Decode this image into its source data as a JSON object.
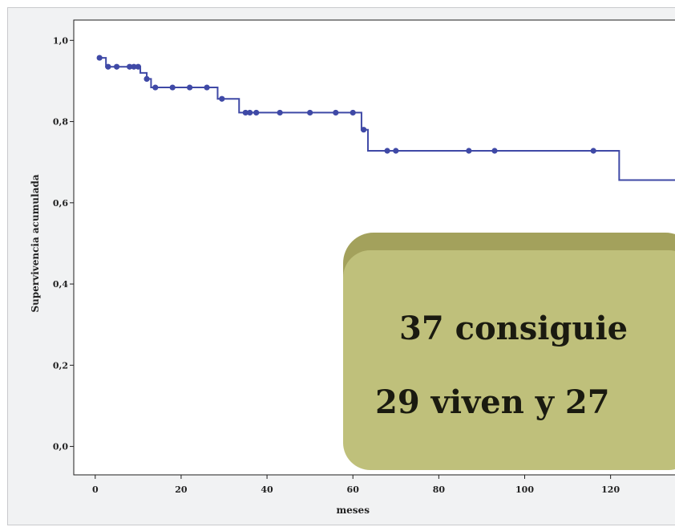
{
  "chart_data": {
    "type": "line",
    "step": true,
    "xlabel": "meses",
    "ylabel": "Supervivencia acumulada",
    "xlim": [
      -5,
      135
    ],
    "ylim": [
      -0.07,
      1.05
    ],
    "x_ticks": [
      "0",
      "20",
      "40",
      "60",
      "80",
      "100",
      "120"
    ],
    "y_ticks": [
      "0,0",
      "0,2",
      "0,4",
      "0,6",
      "0,8",
      "1,0"
    ],
    "grid": false,
    "series": [
      {
        "color": "#3f49a6",
        "steps": [
          [
            0.5,
            0.957
          ],
          [
            2.5,
            0.935
          ],
          [
            10.5,
            0.92
          ],
          [
            12,
            0.905
          ],
          [
            13,
            0.884
          ],
          [
            28.5,
            0.856
          ],
          [
            33.5,
            0.822
          ],
          [
            62,
            0.78
          ],
          [
            63.5,
            0.728
          ],
          [
            122,
            0.656
          ],
          [
            135,
            0.656
          ]
        ],
        "censored": [
          [
            1,
            0.957
          ],
          [
            3,
            0.935
          ],
          [
            5,
            0.935
          ],
          [
            8,
            0.935
          ],
          [
            9,
            0.935
          ],
          [
            10,
            0.935
          ],
          [
            12,
            0.905
          ],
          [
            14,
            0.884
          ],
          [
            18,
            0.884
          ],
          [
            22,
            0.884
          ],
          [
            26,
            0.884
          ],
          [
            29.5,
            0.856
          ],
          [
            35,
            0.822
          ],
          [
            36,
            0.822
          ],
          [
            37.5,
            0.822
          ],
          [
            43,
            0.822
          ],
          [
            50,
            0.822
          ],
          [
            56,
            0.822
          ],
          [
            60,
            0.822
          ],
          [
            62.5,
            0.78
          ],
          [
            68,
            0.728
          ],
          [
            70,
            0.728
          ],
          [
            87,
            0.728
          ],
          [
            93,
            0.728
          ],
          [
            116,
            0.728
          ]
        ]
      }
    ]
  },
  "callout": {
    "line1": "37 consiguie",
    "line2": "29 viven y 27"
  },
  "colors": {
    "line": "#3f49a6",
    "callout_face": "#bfc07b",
    "callout_shadow": "#a3a15c",
    "background": "#f1f2f3"
  }
}
